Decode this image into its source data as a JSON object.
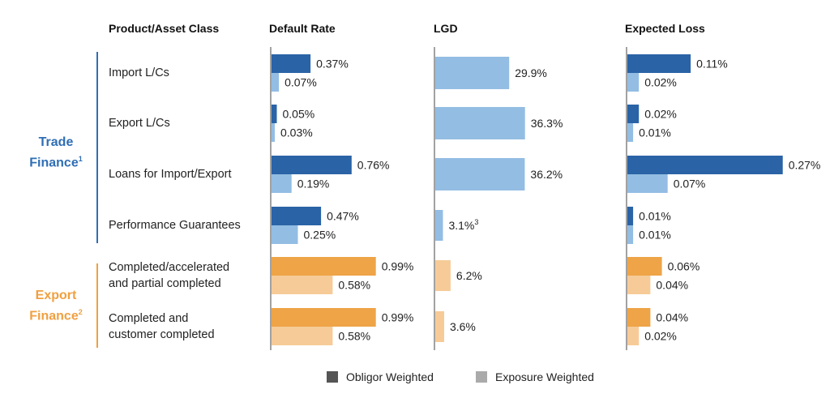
{
  "headers": {
    "product": "Product/Asset Class",
    "default_rate": "Default Rate",
    "lgd": "LGD",
    "expected_loss": "Expected Loss"
  },
  "groups": {
    "trade": {
      "label": "Trade",
      "label2": "Finance",
      "sup": "1",
      "color": "#2f6eb5"
    },
    "export": {
      "label": "Export",
      "label2": "Finance",
      "sup": "2",
      "color": "#f0a040"
    }
  },
  "legend": {
    "obligor": "Obligor Weighted",
    "exposure": "Exposure Weighted",
    "obligor_color": "#555555",
    "exposure_color": "#aaaaaa"
  },
  "chart_data": {
    "type": "bar",
    "orientation": "horizontal",
    "categories": [
      "Import L/Cs",
      "Export L/Cs",
      "Loans for Import/Export",
      "Performance Guarantees",
      "Completed/accelerated and partial completed",
      "Completed and customer completed"
    ],
    "category_lines": [
      [
        "Import L/Cs"
      ],
      [
        "Export L/Cs"
      ],
      [
        "Loans for Import/Export"
      ],
      [
        "Performance Guarantees"
      ],
      [
        "Completed/accelerated",
        "and partial completed"
      ],
      [
        "Completed and",
        "customer completed"
      ]
    ],
    "category_group": [
      "trade",
      "trade",
      "trade",
      "trade",
      "export",
      "export"
    ],
    "colors": {
      "trade_obligor": "#2a63a6",
      "trade_exposure": "#93bde3",
      "export_obligor": "#eea447",
      "export_exposure": "#f6cb98"
    },
    "panels": [
      {
        "title": "Default Rate",
        "series": [
          {
            "name": "Obligor Weighted",
            "values": [
              0.37,
              0.05,
              0.76,
              0.47,
              0.99,
              0.99
            ],
            "labels": [
              "0.37%",
              "0.05%",
              "0.76%",
              "0.47%",
              "0.99%",
              "0.99%"
            ]
          },
          {
            "name": "Exposure Weighted",
            "values": [
              0.07,
              0.03,
              0.19,
              0.25,
              0.58,
              0.58
            ],
            "labels": [
              "0.07%",
              "0.03%",
              "0.19%",
              "0.25%",
              "0.58%",
              "0.58%"
            ]
          }
        ]
      },
      {
        "title": "LGD",
        "series": [
          {
            "name": "Exposure Weighted",
            "values": [
              29.9,
              36.3,
              36.2,
              3.1,
              6.2,
              3.6
            ],
            "labels": [
              "29.9%",
              "36.3%",
              "36.2%",
              "3.1%",
              "6.2%",
              "3.6%"
            ],
            "footnotes": [
              "",
              "",
              "",
              "3",
              "",
              ""
            ]
          }
        ]
      },
      {
        "title": "Expected Loss",
        "series": [
          {
            "name": "Obligor Weighted",
            "values": [
              0.11,
              0.02,
              0.27,
              0.01,
              0.06,
              0.04
            ],
            "labels": [
              "0.11%",
              "0.02%",
              "0.27%",
              "0.01%",
              "0.06%",
              "0.04%"
            ]
          },
          {
            "name": "Exposure Weighted",
            "values": [
              0.02,
              0.01,
              0.07,
              0.01,
              0.04,
              0.02
            ],
            "labels": [
              "0.02%",
              "0.01%",
              "0.07%",
              "0.01%",
              "0.04%",
              "0.02%"
            ]
          }
        ]
      }
    ]
  }
}
